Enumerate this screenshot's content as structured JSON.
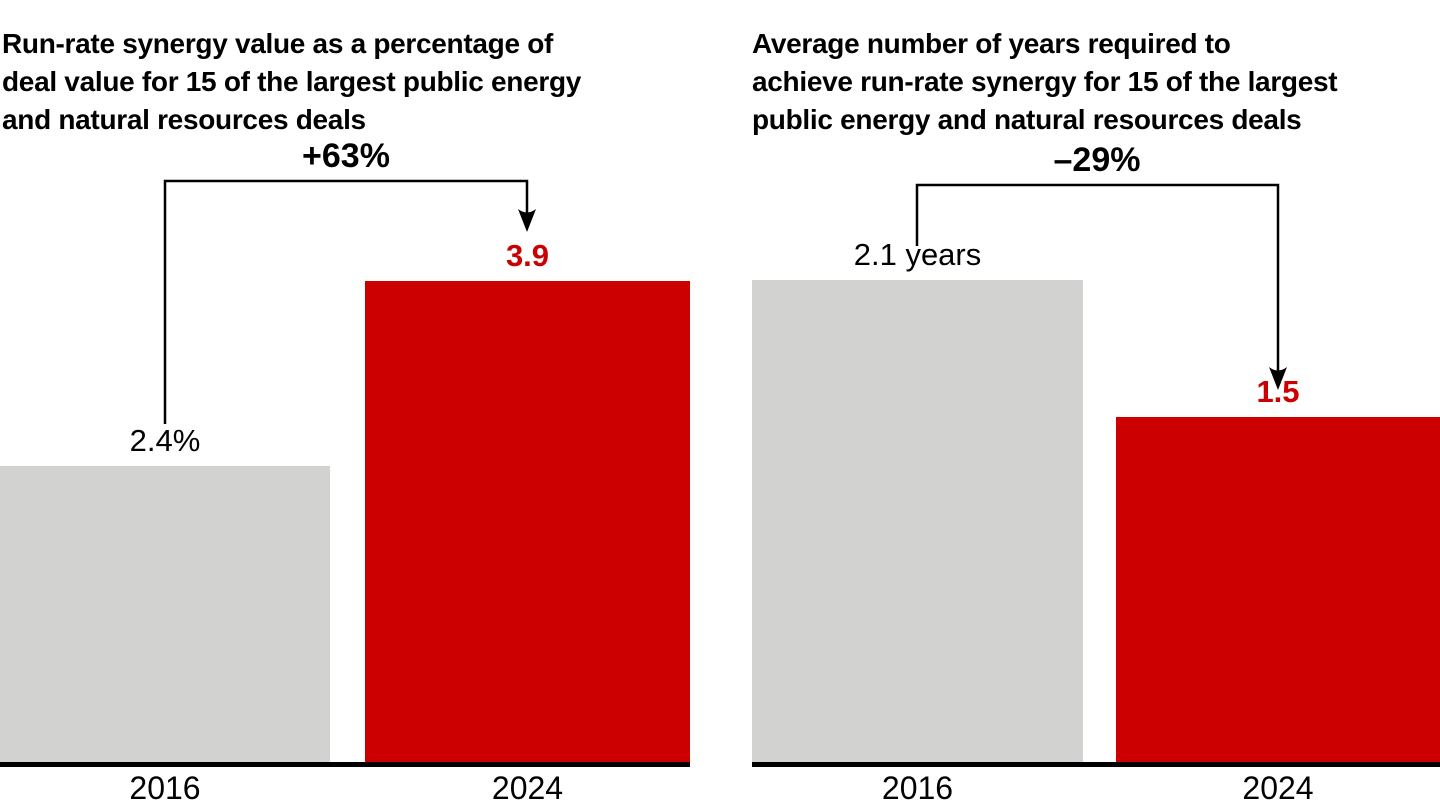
{
  "page": {
    "background": "#ffffff",
    "accent_red": "#cc0000",
    "neutral_gray": "#d2d2d0",
    "axis_color": "#000000"
  },
  "chart_data": [
    {
      "type": "bar",
      "title": "Run-rate synergy value as a percentage of deal value for 15 of the largest public energy and natural resources deals",
      "title_lines": [
        "Run-rate synergy value as a percentage of",
        "deal value for 15 of the largest public energy",
        "and natural resources deals"
      ],
      "categories": [
        "2016",
        "2024"
      ],
      "values": [
        2.4,
        3.9
      ],
      "value_labels": [
        "2.4%",
        "3.9"
      ],
      "change_label": "+63%",
      "bar_colors": [
        "#d2d2d0",
        "#cc0000"
      ],
      "value_label_colors": [
        "#000000",
        "#cc0000"
      ],
      "ylim": [
        0,
        4.3
      ],
      "grid": false,
      "legend": "none"
    },
    {
      "type": "bar",
      "title": "Average number of years required to achieve run-rate synergy for 15 of the largest public energy and natural resources deals",
      "title_lines": [
        "Average number of years required to",
        "achieve run-rate synergy for 15 of the largest",
        "public energy and natural resources deals"
      ],
      "categories": [
        "2016",
        "2024"
      ],
      "values": [
        2.1,
        1.5
      ],
      "value_labels": [
        "2.1 years",
        "1.5"
      ],
      "change_label": "–29%",
      "bar_colors": [
        "#d2d2d0",
        "#cc0000"
      ],
      "value_label_colors": [
        "#000000",
        "#cc0000"
      ],
      "ylim": [
        0,
        2.3
      ],
      "grid": false,
      "legend": "none"
    }
  ]
}
